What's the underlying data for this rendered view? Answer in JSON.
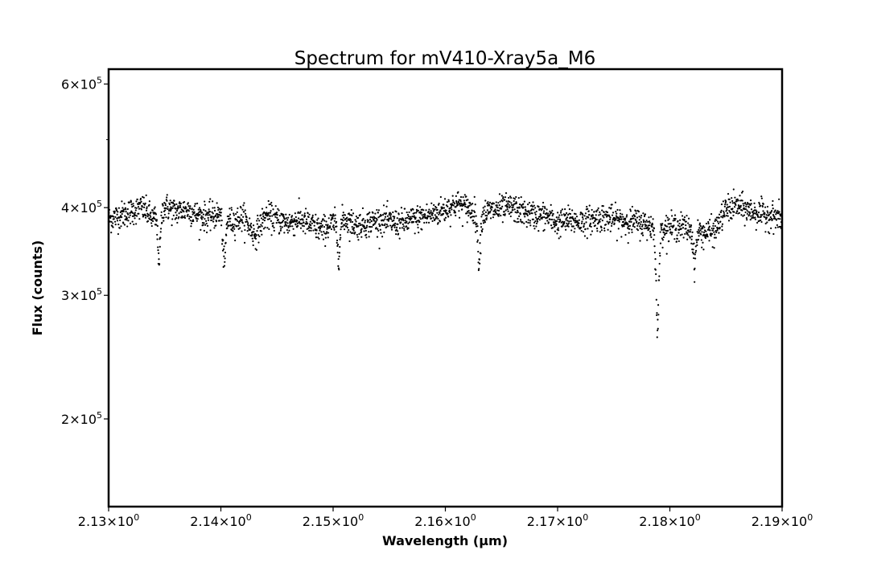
{
  "chart_data": {
    "type": "scatter",
    "title": "Spectrum for mV410-Xray5a_M6",
    "xlabel": "Wavelength (μm)",
    "ylabel": "Flux (counts)",
    "xlim": [
      2.13,
      2.19
    ],
    "ylim": [
      150000,
      630000
    ],
    "yscale": "log",
    "grid": false,
    "marker_color": "#000000",
    "x_ticks": [
      {
        "value": 2.13,
        "mant": "2.13",
        "exp": "0"
      },
      {
        "value": 2.14,
        "mant": "2.14",
        "exp": "0"
      },
      {
        "value": 2.15,
        "mant": "2.15",
        "exp": "0"
      },
      {
        "value": 2.16,
        "mant": "2.16",
        "exp": "0"
      },
      {
        "value": 2.17,
        "mant": "2.17",
        "exp": "0"
      },
      {
        "value": 2.18,
        "mant": "2.18",
        "exp": "0"
      },
      {
        "value": 2.19,
        "mant": "2.19",
        "exp": "0"
      }
    ],
    "y_ticks": [
      {
        "value": 200000,
        "mant": "2",
        "exp": "5"
      },
      {
        "value": 300000,
        "mant": "3",
        "exp": "5"
      },
      {
        "value": 400000,
        "mant": "4",
        "exp": "5"
      },
      {
        "value": 600000,
        "mant": "6",
        "exp": "5"
      }
    ],
    "y_minor_ticks": [
      500000
    ],
    "x": [
      2.13,
      2.131,
      2.132,
      2.133,
      2.134,
      2.135,
      2.136,
      2.137,
      2.138,
      2.139,
      2.14,
      2.141,
      2.142,
      2.143,
      2.144,
      2.145,
      2.146,
      2.147,
      2.148,
      2.149,
      2.15,
      2.151,
      2.152,
      2.153,
      2.154,
      2.155,
      2.156,
      2.157,
      2.158,
      2.159,
      2.16,
      2.161,
      2.162,
      2.163,
      2.164,
      2.165,
      2.166,
      2.167,
      2.168,
      2.169,
      2.17,
      2.171,
      2.172,
      2.173,
      2.174,
      2.175,
      2.176,
      2.177,
      2.178,
      2.179,
      2.18,
      2.181,
      2.182,
      2.183,
      2.184,
      2.185,
      2.186,
      2.187,
      2.188,
      2.189,
      2.19
    ],
    "y": [
      385000,
      390000,
      395000,
      400000,
      385000,
      402000,
      395000,
      398000,
      390000,
      388000,
      392000,
      382000,
      388000,
      365000,
      390000,
      385000,
      380000,
      385000,
      378000,
      372000,
      380000,
      386000,
      378000,
      380000,
      384000,
      382000,
      380000,
      384000,
      388000,
      392000,
      398000,
      405000,
      400000,
      390000,
      396000,
      398000,
      400000,
      393000,
      390000,
      389000,
      380000,
      384000,
      382000,
      385000,
      388000,
      385000,
      383000,
      382000,
      378000,
      374000,
      375000,
      376000,
      372000,
      368000,
      370000,
      398000,
      402000,
      396000,
      392000,
      390000,
      385000
    ],
    "annotated_dips": [
      {
        "x": 2.1345,
        "y": 340000
      },
      {
        "x": 2.1403,
        "y": 332000
      },
      {
        "x": 2.1505,
        "y": 345000
      },
      {
        "x": 2.163,
        "y": 338000
      },
      {
        "x": 2.1789,
        "y": 268000
      },
      {
        "x": 2.1822,
        "y": 335000
      }
    ]
  }
}
